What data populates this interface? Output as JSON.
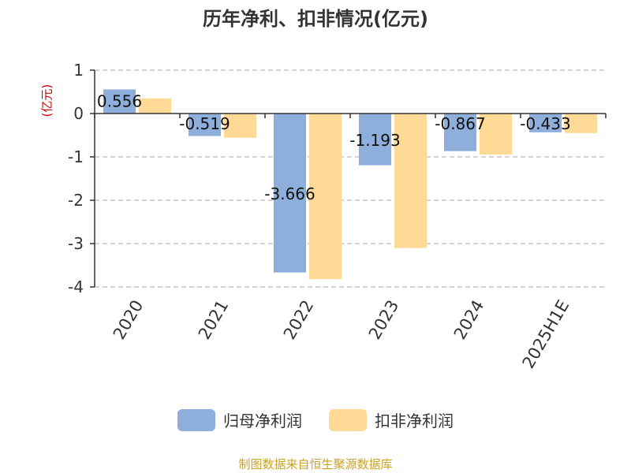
{
  "title": "历年净利、扣非情况(亿元)",
  "source": "制图数据来自恒生聚源数据库",
  "colors": {
    "series0": "#8eaedb",
    "series1": "#ffd996",
    "grid": "#bbbbbb",
    "axis": "#333333",
    "ylabel": "#cc0000"
  },
  "chart_data": {
    "type": "bar",
    "title": "历年净利、扣非情况(亿元)",
    "ylabel": "(亿元)",
    "xlabel": "",
    "categories": [
      "2020",
      "2021",
      "2022",
      "2023",
      "2024",
      "2025H1E"
    ],
    "ylim": [
      -4,
      1
    ],
    "yticks": [
      1,
      0,
      -1,
      -2,
      -3,
      -4
    ],
    "grid": true,
    "legend": "bottom",
    "series": [
      {
        "name": "归母净利润",
        "values": [
          0.556,
          -0.519,
          -3.666,
          -1.193,
          -0.867,
          -0.433
        ]
      },
      {
        "name": "扣非净利润",
        "values": [
          0.35,
          -0.56,
          -3.82,
          -3.1,
          -0.95,
          -0.45
        ]
      }
    ],
    "data_labels": [
      "0.556",
      "-0.519",
      "-3.666",
      "-1.193",
      "-0.867",
      "-0.433"
    ]
  }
}
